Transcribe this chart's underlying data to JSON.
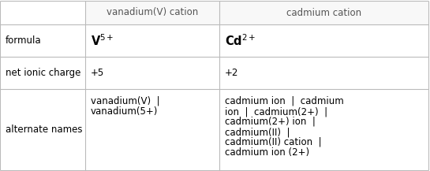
{
  "col_headers": [
    "vanadium(V) cation",
    "cadmium cation"
  ],
  "row_headers": [
    "formula",
    "net ionic charge",
    "alternate names"
  ],
  "formula_v": "V$^{5+}$",
  "formula_cd": "Cd$^{2+}$",
  "charge_v": "+5",
  "charge_cd": "+2",
  "alt_v_lines": [
    "vanadium(V)  |",
    "vanadium(5+)"
  ],
  "alt_cd_lines": [
    "cadmium ion  |  cadmium",
    "ion  |  cadmium(2+)  |",
    "cadmium(2+) ion  |",
    "cadmium(II)  |",
    "cadmium(II) cation  |",
    "cadmium ion (2+)"
  ],
  "bg_color": "#ffffff",
  "line_color": "#bbbbbb",
  "text_color": "#000000",
  "header_text_color": "#555555",
  "font_size": 8.5,
  "formula_font_size": 10.5
}
